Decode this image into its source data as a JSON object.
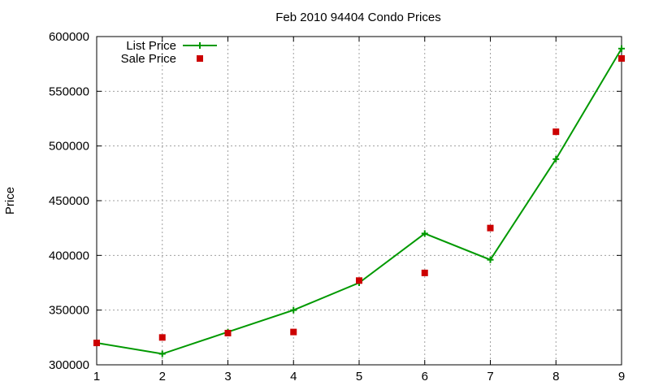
{
  "chart_data": {
    "type": "line",
    "title": "Feb 2010 94404 Condo Prices",
    "xlabel": "",
    "ylabel": "Price",
    "x": [
      1,
      2,
      3,
      4,
      5,
      6,
      7,
      8,
      9
    ],
    "xlim": [
      1,
      9
    ],
    "ylim": [
      300000,
      600000
    ],
    "xticks": [
      1,
      2,
      3,
      4,
      5,
      6,
      7,
      8,
      9
    ],
    "yticks": [
      300000,
      350000,
      400000,
      450000,
      500000,
      550000,
      600000
    ],
    "grid": true,
    "legend_position": "top-left",
    "series": [
      {
        "name": "List Price",
        "style": "linespoints",
        "marker": "plus",
        "color": "#009900",
        "values": [
          320000,
          310000,
          330000,
          350000,
          375000,
          420000,
          396000,
          488000,
          589000
        ]
      },
      {
        "name": "Sale Price",
        "style": "points",
        "marker": "square",
        "color": "#cc0000",
        "values": [
          320000,
          325000,
          329000,
          330000,
          377000,
          384000,
          425000,
          513000,
          580000
        ]
      }
    ]
  }
}
